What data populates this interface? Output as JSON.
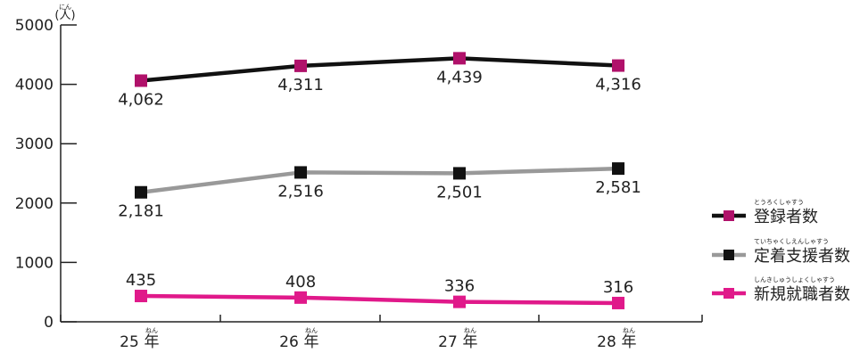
{
  "chart_data": {
    "type": "line",
    "unit_label": "(人)",
    "unit_ruby": "にん",
    "categories": [
      "25年",
      "26年",
      "27年",
      "28年"
    ],
    "category_parts": [
      {
        "num": "25",
        "kanji": "年"
      },
      {
        "num": "26",
        "kanji": "年"
      },
      {
        "num": "27",
        "kanji": "年"
      },
      {
        "num": "28",
        "kanji": "年"
      }
    ],
    "category_ruby": "ねん",
    "y_ticks": [
      "0",
      "1000",
      "2000",
      "3000",
      "4000",
      "5000"
    ],
    "ylim": [
      0,
      5000
    ],
    "grid": false,
    "legend_position": "right",
    "series": [
      {
        "name": "登録者数",
        "ruby": "とうろくしゃすう",
        "values": [
          4062,
          4311,
          4439,
          4316
        ],
        "labels": [
          "4,062",
          "4,311",
          "4,439",
          "4,316"
        ],
        "line_color": "#111111",
        "marker_color": "#b0116a",
        "label_pos": "below"
      },
      {
        "name": "定着支援者数",
        "ruby": "ていちゃくしえんしゃすう",
        "values": [
          2181,
          2516,
          2501,
          2581
        ],
        "labels": [
          "2,181",
          "2,516",
          "2,501",
          "2,581"
        ],
        "line_color": "#999999",
        "marker_color": "#111111",
        "label_pos": "below"
      },
      {
        "name": "新規就職者数",
        "ruby": "しんきしゅうしょくしゃすう",
        "values": [
          435,
          408,
          336,
          316
        ],
        "labels": [
          "435",
          "408",
          "336",
          "316"
        ],
        "line_color": "#e0198a",
        "marker_color": "#e0198a",
        "label_pos": "above"
      }
    ]
  }
}
